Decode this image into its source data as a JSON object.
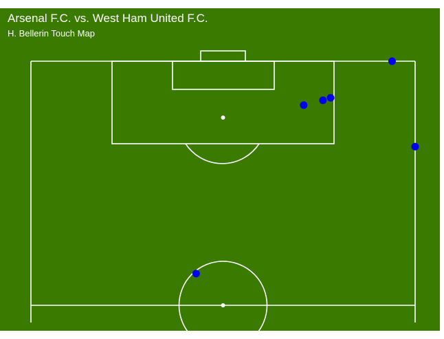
{
  "chart_data": {
    "type": "scatter",
    "title": "Arsenal F.C. vs. West Ham United F.C.",
    "subtitle": "H. Bellerin Touch Map",
    "colors": {
      "pitch": "#3a7a00",
      "lines": "#ffffff",
      "points": "#0000ee"
    },
    "xlim": [
      0,
      100
    ],
    "ylim": [
      50,
      100
    ],
    "points": [
      {
        "x": 94,
        "y": 100
      },
      {
        "x": 71,
        "y": 91
      },
      {
        "x": 76,
        "y": 92
      },
      {
        "x": 78,
        "y": 92.5
      },
      {
        "x": 100,
        "y": 82.5
      },
      {
        "x": 43,
        "y": 56.5
      }
    ]
  }
}
